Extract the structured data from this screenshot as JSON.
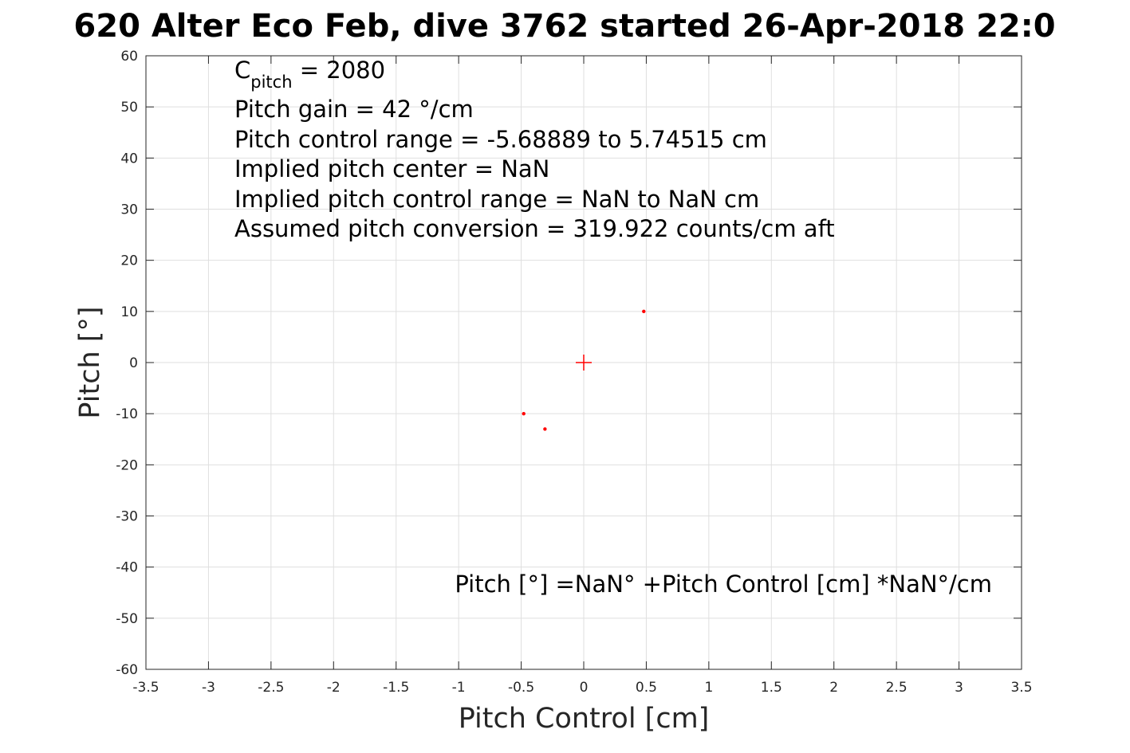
{
  "chart_data": {
    "type": "scatter",
    "title": "620 Alter Eco Feb, dive 3762 started 26-Apr-2018 22:0",
    "xlabel": "Pitch Control [cm]",
    "ylabel": "Pitch [°]",
    "xlim": [
      -3.5,
      3.5
    ],
    "ylim": [
      -60,
      60
    ],
    "x_ticks": [
      -3.5,
      -3,
      -2.5,
      -2,
      -1.5,
      -1,
      -0.5,
      0,
      0.5,
      1,
      1.5,
      2,
      2.5,
      3,
      3.5
    ],
    "x_tick_labels": [
      "-3.5",
      "-3",
      "-2.5",
      "-2",
      "-1.5",
      "-1",
      "-0.5",
      "0",
      "0.5",
      "1",
      "1.5",
      "2",
      "2.5",
      "3",
      "3.5"
    ],
    "y_ticks": [
      60,
      50,
      40,
      30,
      20,
      10,
      0,
      -10,
      -20,
      -30,
      -40,
      -50,
      -60
    ],
    "y_tick_labels": [
      "60",
      "50",
      "40",
      "30",
      "20",
      "10",
      "0",
      "-10",
      "-20",
      "-30",
      "-40",
      "-50",
      "-60"
    ],
    "grid": true,
    "points": [
      {
        "x": 0.48,
        "y": 10
      },
      {
        "x": -0.48,
        "y": -10
      },
      {
        "x": -0.31,
        "y": -13
      }
    ],
    "center_marker": {
      "x": 0,
      "y": 0
    },
    "annotations": {
      "c_pitch_main": "C",
      "c_pitch_sub": "pitch",
      "c_pitch_value": " = 2080",
      "lines": [
        "Pitch gain = 42 °/cm",
        "Pitch control range = -5.68889 to 5.74515 cm",
        "Implied pitch center = NaN",
        "Implied pitch control range = NaN to NaN cm",
        "Assumed pitch conversion = 319.922 counts/cm aft"
      ],
      "fit_equation": "Pitch [°] =NaN° +Pitch Control [cm] *NaN°/cm"
    },
    "colors": {
      "points": "#ff0000",
      "grid": "#dfdfdf",
      "axes": "#262626"
    }
  }
}
